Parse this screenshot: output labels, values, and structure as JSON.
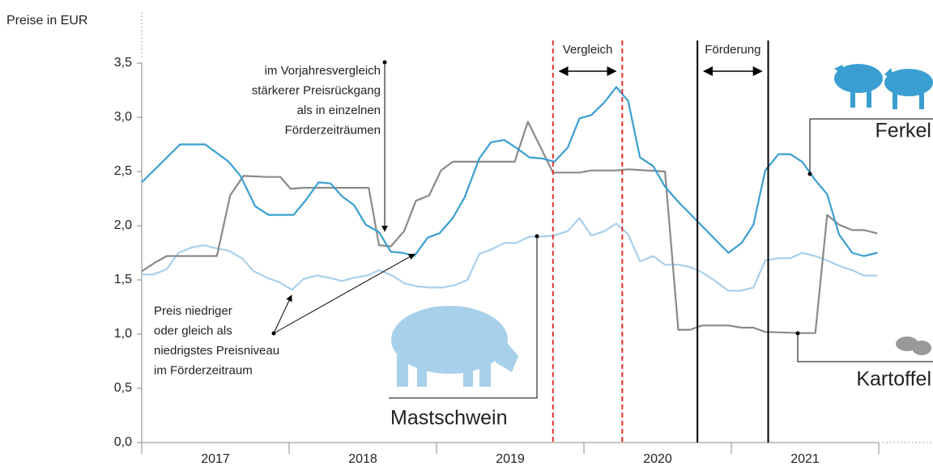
{
  "chart_data": {
    "type": "line",
    "ylabel": "Preise in EUR",
    "ylim": [
      0,
      3.5
    ],
    "yticks": [
      {
        "value": 0,
        "label": "0,0"
      },
      {
        "value": 0.5,
        "label": "0,5"
      },
      {
        "value": 1,
        "label": "1,0"
      },
      {
        "value": 1.5,
        "label": "1,5"
      },
      {
        "value": 2,
        "label": "2,0"
      },
      {
        "value": 2.5,
        "label": "2,5"
      },
      {
        "value": 3,
        "label": "3,0"
      },
      {
        "value": 3.5,
        "label": "3,5"
      }
    ],
    "xlim": [
      2017,
      2022
    ],
    "xticks": [
      {
        "value": 2017.5,
        "label": "2017"
      },
      {
        "value": 2018.5,
        "label": "2018"
      },
      {
        "value": 2019.5,
        "label": "2019"
      },
      {
        "value": 2020.5,
        "label": "2020"
      },
      {
        "value": 2021.5,
        "label": "2021"
      }
    ],
    "series": [
      {
        "name": "Ferkel",
        "color": "#3a9fd0",
        "x": [
          2017.0,
          2017.26,
          2017.43,
          2017.59,
          2017.67,
          2017.77,
          2017.86,
          2017.94,
          2018.03,
          2018.11,
          2018.2,
          2018.28,
          2018.36,
          2018.44,
          2018.52,
          2018.61,
          2018.69,
          2018.77,
          2018.85,
          2018.94,
          2019.02,
          2019.11,
          2019.19,
          2019.29,
          2019.37,
          2019.46,
          2019.55,
          2019.63,
          2019.72,
          2019.8,
          2019.89,
          2019.97,
          2020.05,
          2020.14,
          2020.22,
          2020.3,
          2020.38,
          2020.47,
          2020.55,
          2020.64,
          2020.98,
          2021.07,
          2021.15,
          2021.23,
          2021.32,
          2021.4,
          2021.48,
          2021.57,
          2021.65,
          2021.73,
          2021.82,
          2021.9,
          2021.99
        ],
        "values": [
          2.4,
          2.75,
          2.75,
          2.59,
          2.46,
          2.18,
          2.1,
          2.1,
          2.1,
          2.23,
          2.4,
          2.39,
          2.27,
          2.19,
          2.01,
          1.94,
          1.76,
          1.75,
          1.72,
          1.89,
          1.93,
          2.07,
          2.26,
          2.62,
          2.77,
          2.79,
          2.71,
          2.63,
          2.62,
          2.59,
          2.72,
          2.99,
          3.02,
          3.14,
          3.28,
          3.15,
          2.63,
          2.55,
          2.36,
          2.22,
          1.75,
          1.84,
          2.01,
          2.51,
          2.66,
          2.66,
          2.59,
          2.42,
          2.29,
          1.92,
          1.75,
          1.72,
          1.75
        ]
      },
      {
        "name": "Kartoffel",
        "color": "#8a8a8a",
        "x": [
          2017.0,
          2017.09,
          2017.17,
          2017.51,
          2017.6,
          2017.69,
          2017.85,
          2017.94,
          2018.01,
          2018.1,
          2018.54,
          2018.61,
          2018.69,
          2018.78,
          2018.86,
          2018.95,
          2019.03,
          2019.11,
          2019.29,
          2019.53,
          2019.62,
          2019.79,
          2019.97,
          2020.05,
          2020.22,
          2020.3,
          2020.55,
          2020.64,
          2020.72,
          2020.8,
          2020.98,
          2021.07,
          2021.15,
          2021.23,
          2021.48,
          2021.57,
          2021.65,
          2021.73,
          2021.82,
          2021.9,
          2021.99
        ],
        "values": [
          1.58,
          1.66,
          1.72,
          1.72,
          2.28,
          2.46,
          2.45,
          2.45,
          2.34,
          2.35,
          2.35,
          1.82,
          1.81,
          1.95,
          2.23,
          2.28,
          2.51,
          2.59,
          2.59,
          2.59,
          2.96,
          2.49,
          2.49,
          2.51,
          2.51,
          2.52,
          2.5,
          1.04,
          1.04,
          1.08,
          1.08,
          1.06,
          1.06,
          1.02,
          1.01,
          1.01,
          2.1,
          2.01,
          1.96,
          1.96,
          1.93
        ]
      },
      {
        "name": "Mastschwein",
        "color": "#a8d0ea",
        "x": [
          2017.0,
          2017.08,
          2017.17,
          2017.25,
          2017.34,
          2017.42,
          2017.51,
          2017.59,
          2017.68,
          2017.76,
          2017.85,
          2017.93,
          2018.02,
          2018.1,
          2018.19,
          2018.27,
          2018.36,
          2018.44,
          2018.53,
          2018.61,
          2018.7,
          2018.78,
          2018.87,
          2018.95,
          2019.04,
          2019.12,
          2019.21,
          2019.29,
          2019.37,
          2019.46,
          2019.54,
          2019.63,
          2019.72,
          2019.8,
          2019.89,
          2019.97,
          2020.05,
          2020.14,
          2020.22,
          2020.3,
          2020.38,
          2020.47,
          2020.55,
          2020.64,
          2020.72,
          2020.8,
          2020.89,
          2020.98,
          2021.06,
          2021.15,
          2021.23,
          2021.32,
          2021.4,
          2021.48,
          2021.57,
          2021.65,
          2021.73,
          2021.82,
          2021.9,
          2021.99
        ],
        "values": [
          1.55,
          1.55,
          1.6,
          1.75,
          1.8,
          1.82,
          1.79,
          1.77,
          1.7,
          1.58,
          1.52,
          1.48,
          1.41,
          1.51,
          1.54,
          1.52,
          1.49,
          1.52,
          1.54,
          1.59,
          1.54,
          1.47,
          1.44,
          1.43,
          1.43,
          1.45,
          1.5,
          1.74,
          1.78,
          1.84,
          1.84,
          1.9,
          1.9,
          1.91,
          1.95,
          2.07,
          1.91,
          1.95,
          2.02,
          1.92,
          1.67,
          1.72,
          1.64,
          1.64,
          1.62,
          1.57,
          1.49,
          1.4,
          1.4,
          1.43,
          1.68,
          1.7,
          1.7,
          1.75,
          1.72,
          1.68,
          1.63,
          1.59,
          1.54,
          1.54
        ]
      }
    ],
    "periods": [
      {
        "label": "Vergleich",
        "x": [
          2019.79,
          2020.26
        ],
        "color": "#e03030",
        "style": "dashed"
      },
      {
        "label": "Förderung",
        "x": [
          2020.77,
          2021.25
        ],
        "color": "#000000",
        "style": "solid"
      }
    ],
    "annotations": [
      {
        "lines": [
          "im Vorjahresvergleich",
          "stärkerer Preisrückgang",
          "als in einzelnen",
          "Förderzeiträumen"
        ]
      },
      {
        "lines": [
          "Preis niedriger",
          "oder gleich als",
          "niedrigstes Preisniveau",
          "im Förderzeitraum"
        ]
      }
    ]
  }
}
